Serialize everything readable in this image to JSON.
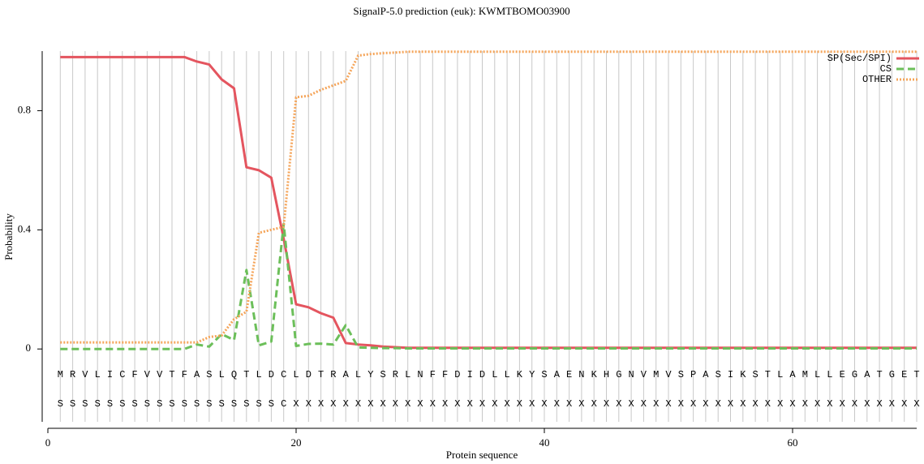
{
  "chart_data": {
    "type": "line",
    "title": "SignalP-5.0 prediction (euk):  KWMTBOMO03900",
    "x_label": "Protein sequence",
    "y_label": "Probability",
    "x": [
      1,
      2,
      3,
      4,
      5,
      6,
      7,
      8,
      9,
      10,
      11,
      12,
      13,
      14,
      15,
      16,
      17,
      18,
      19,
      20,
      21,
      22,
      23,
      24,
      25,
      26,
      27,
      28,
      29,
      30,
      31,
      32,
      33,
      34,
      35,
      36,
      37,
      38,
      39,
      40,
      41,
      42,
      43,
      44,
      45,
      46,
      47,
      48,
      49,
      50,
      51,
      52,
      53,
      54,
      55,
      56,
      57,
      58,
      59,
      60,
      61,
      62,
      63,
      64,
      65,
      66,
      67,
      68,
      69,
      70
    ],
    "sequence": [
      "M",
      "R",
      "V",
      "L",
      "I",
      "C",
      "F",
      "V",
      "V",
      "T",
      "F",
      "A",
      "S",
      "L",
      "Q",
      "T",
      "L",
      "D",
      "C",
      "L",
      "D",
      "T",
      "R",
      "A",
      "L",
      "Y",
      "S",
      "R",
      "L",
      "N",
      "F",
      "F",
      "D",
      "I",
      "D",
      "L",
      "L",
      "K",
      "Y",
      "S",
      "A",
      "E",
      "N",
      "K",
      "H",
      "G",
      "N",
      "V",
      "M",
      "V",
      "S",
      "P",
      "A",
      "S",
      "I",
      "K",
      "S",
      "T",
      "L",
      "A",
      "M",
      "L",
      "L",
      "E",
      "G",
      "A",
      "T",
      "G",
      "E",
      "T"
    ],
    "labels": [
      "S",
      "S",
      "S",
      "S",
      "S",
      "S",
      "S",
      "S",
      "S",
      "S",
      "S",
      "S",
      "S",
      "S",
      "S",
      "S",
      "S",
      "S",
      "C",
      "X",
      "X",
      "X",
      "X",
      "X",
      "X",
      "X",
      "X",
      "X",
      "X",
      "X",
      "X",
      "X",
      "X",
      "X",
      "X",
      "X",
      "X",
      "X",
      "X",
      "X",
      "X",
      "X",
      "X",
      "X",
      "X",
      "X",
      "X",
      "X",
      "X",
      "X",
      "X",
      "X",
      "X",
      "X",
      "X",
      "X",
      "X",
      "X",
      "X",
      "X",
      "X",
      "X",
      "X",
      "X",
      "X",
      "X",
      "X",
      "X",
      "X",
      "X"
    ],
    "series": [
      {
        "name": "SP(Sec/SPI)",
        "color": "#e4555f",
        "dash": "solid",
        "values": [
          0.98,
          0.98,
          0.98,
          0.98,
          0.98,
          0.98,
          0.98,
          0.98,
          0.98,
          0.98,
          0.98,
          0.965,
          0.955,
          0.905,
          0.875,
          0.61,
          0.6,
          0.575,
          0.37,
          0.15,
          0.14,
          0.12,
          0.105,
          0.02,
          0.015,
          0.012,
          0.008,
          0.006,
          0.004,
          0.004,
          0.004,
          0.004,
          0.004,
          0.004,
          0.004,
          0.004,
          0.004,
          0.004,
          0.004,
          0.004,
          0.004,
          0.004,
          0.004,
          0.004,
          0.004,
          0.004,
          0.004,
          0.004,
          0.004,
          0.004,
          0.004,
          0.004,
          0.004,
          0.004,
          0.004,
          0.004,
          0.004,
          0.004,
          0.004,
          0.004,
          0.004,
          0.004,
          0.004,
          0.004,
          0.004,
          0.004,
          0.004,
          0.004,
          0.004,
          0.004
        ]
      },
      {
        "name": "CS",
        "color": "#6cbf5a",
        "dash": "dashed",
        "values": [
          0,
          0,
          0,
          0,
          0,
          0,
          0,
          0,
          0,
          0,
          0,
          0.015,
          0.008,
          0.05,
          0.03,
          0.265,
          0.012,
          0.025,
          0.42,
          0.01,
          0.017,
          0.018,
          0.015,
          0.08,
          0.005,
          0.004,
          0.003,
          0.003,
          0.002,
          0.002,
          0.002,
          0.002,
          0.002,
          0.002,
          0.002,
          0.002,
          0.002,
          0.002,
          0.002,
          0.002,
          0.002,
          0.002,
          0.002,
          0.002,
          0.002,
          0.002,
          0.002,
          0.002,
          0.002,
          0.002,
          0.002,
          0.002,
          0.002,
          0.002,
          0.002,
          0.002,
          0.002,
          0.002,
          0.002,
          0.002,
          0.002,
          0.002,
          0.002,
          0.002,
          0.002,
          0.002,
          0.002,
          0.002,
          0.002,
          0.002
        ]
      },
      {
        "name": "OTHER",
        "color": "#f5a55a",
        "dash": "dotted",
        "values": [
          0.022,
          0.022,
          0.022,
          0.022,
          0.022,
          0.022,
          0.022,
          0.022,
          0.022,
          0.022,
          0.022,
          0.022,
          0.04,
          0.045,
          0.1,
          0.125,
          0.39,
          0.4,
          0.41,
          0.845,
          0.85,
          0.87,
          0.885,
          0.9,
          0.985,
          0.99,
          0.993,
          0.995,
          0.998,
          0.998,
          0.998,
          0.998,
          0.998,
          0.998,
          0.998,
          0.998,
          0.998,
          0.998,
          0.998,
          0.998,
          0.998,
          0.998,
          0.998,
          0.998,
          0.998,
          0.998,
          0.998,
          0.998,
          0.998,
          0.998,
          0.998,
          0.998,
          0.998,
          0.998,
          0.998,
          0.998,
          0.998,
          0.998,
          0.998,
          0.998,
          0.998,
          0.998,
          0.998,
          0.998,
          0.998,
          0.998,
          0.998,
          0.998,
          0.998,
          0.998
        ]
      }
    ],
    "xlim": [
      0,
      70
    ],
    "xticks": [
      0,
      20,
      40,
      60
    ],
    "ylim": [
      -0.25,
      1.0
    ],
    "yticks": [
      0,
      0.4,
      0.8
    ],
    "grid": true,
    "legend": "upper right"
  }
}
